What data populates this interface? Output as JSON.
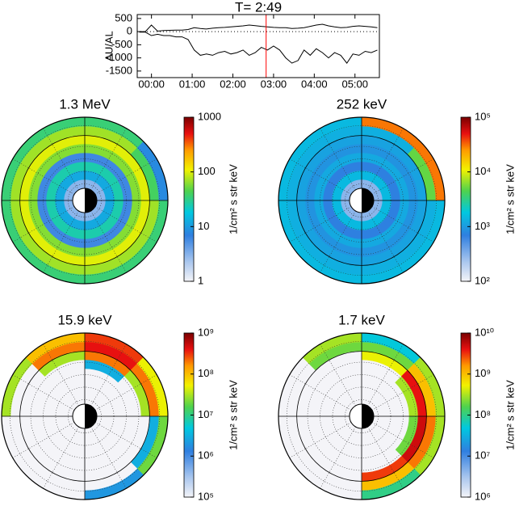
{
  "chart_data": [
    {
      "type": "line",
      "title": "T= 2:49",
      "ylabel": "AU/AL",
      "x": [
        -0.3,
        -0.15,
        0,
        0.15,
        0.3,
        0.45,
        0.6,
        0.75,
        0.9,
        1.05,
        1.2,
        1.35,
        1.5,
        1.65,
        1.8,
        1.95,
        2.1,
        2.25,
        2.4,
        2.55,
        2.7,
        2.85,
        3,
        3.15,
        3.3,
        3.45,
        3.6,
        3.75,
        3.9,
        4.05,
        4.2,
        4.35,
        4.5,
        4.65,
        4.8,
        4.95,
        5.1,
        5.25,
        5.4,
        5.55
      ],
      "series": [
        {
          "color": "#000000",
          "values": [
            0,
            0,
            250,
            20,
            40,
            50,
            60,
            60,
            80,
            150,
            120,
            100,
            130,
            150,
            160,
            180,
            200,
            220,
            250,
            230,
            200,
            180,
            160,
            150,
            150,
            120,
            130,
            150,
            200,
            250,
            280,
            220,
            180,
            150,
            160,
            200,
            220,
            200,
            180,
            150
          ]
        },
        {
          "color": "#000000",
          "values": [
            -20,
            -20,
            -150,
            -100,
            -150,
            -150,
            -200,
            -200,
            -300,
            -700,
            -900,
            -850,
            -900,
            -800,
            -750,
            -850,
            -800,
            -700,
            -900,
            -800,
            -600,
            -700,
            -550,
            -700,
            -1000,
            -1200,
            -1100,
            -700,
            -900,
            -650,
            -800,
            -1000,
            -800,
            -900,
            -1200,
            -850,
            -900,
            -750,
            -800,
            -700
          ]
        }
      ],
      "xlim": [
        -0.35,
        5.6
      ],
      "ylim": [
        -1750,
        650
      ],
      "xticks": [
        {
          "value": 0,
          "label": "00:00"
        },
        {
          "value": 1,
          "label": "01:00"
        },
        {
          "value": 2,
          "label": "02:00"
        },
        {
          "value": 3,
          "label": "03:00"
        },
        {
          "value": 4,
          "label": "04:00"
        },
        {
          "value": 5,
          "label": "05:00"
        }
      ],
      "yticks": [
        500,
        0,
        -500,
        -1000,
        -1500
      ],
      "marker": {
        "x": 2.817,
        "color": "#ff0000"
      }
    },
    {
      "type": "polar",
      "title": "1.3 MeV",
      "colorbar_label": "1/cm² s str keV",
      "log_scale": true,
      "clim": [
        1,
        1000
      ],
      "cticks": [
        1,
        10,
        100,
        1000
      ],
      "values": [
        [
          3,
          12,
          25,
          6,
          60,
          100,
          70,
          35
        ],
        [
          3,
          12,
          25,
          6,
          60,
          100,
          40,
          8
        ],
        [
          3,
          12,
          25,
          6,
          60,
          100,
          70,
          35
        ],
        [
          3,
          12,
          25,
          6,
          60,
          100,
          70,
          35
        ],
        [
          3,
          12,
          25,
          6,
          60,
          100,
          70,
          35
        ],
        [
          3,
          12,
          25,
          6,
          60,
          100,
          70,
          35
        ],
        [
          3,
          12,
          25,
          6,
          60,
          100,
          70,
          35
        ],
        [
          3,
          12,
          25,
          6,
          60,
          100,
          70,
          35
        ]
      ]
    },
    {
      "type": "polar",
      "title": "252 keV",
      "colorbar_label": "1/cm² s str keV",
      "log_scale": true,
      "clim": [
        100,
        100000
      ],
      "cticks": [
        {
          "value": 100,
          "label": "10²"
        },
        {
          "value": 1000,
          "label": "10³"
        },
        {
          "value": 10000,
          "label": "10⁴"
        },
        {
          "value": 100000,
          "label": "10⁵"
        }
      ],
      "values": [
        [
          300,
          1500,
          700,
          1200,
          900,
          1100,
          1300,
          30000
        ],
        [
          300,
          1500,
          700,
          1200,
          900,
          1100,
          5000,
          30000
        ],
        [
          300,
          1500,
          700,
          1200,
          900,
          1100,
          1300,
          1500
        ],
        [
          300,
          1500,
          700,
          1200,
          900,
          1100,
          1300,
          1500
        ],
        [
          300,
          1500,
          700,
          1200,
          900,
          1100,
          1300,
          1500
        ],
        [
          300,
          1500,
          700,
          1200,
          900,
          1100,
          1300,
          1500
        ],
        [
          300,
          1500,
          700,
          1200,
          900,
          1100,
          1300,
          1500
        ],
        [
          300,
          1500,
          700,
          1200,
          900,
          1100,
          1300,
          1500
        ]
      ]
    },
    {
      "type": "polar",
      "title": "15.9 keV",
      "colorbar_label": "1/cm² s str keV",
      "log_scale": true,
      "clim": [
        100000,
        1000000000
      ],
      "cticks": [
        {
          "value": 100000,
          "label": "10⁵"
        },
        {
          "value": 1000000,
          "label": "10⁶"
        },
        {
          "value": 10000000,
          "label": "10⁷"
        },
        {
          "value": 100000000,
          "label": "10⁸"
        },
        {
          "value": 1000000000,
          "label": "10⁹"
        }
      ],
      "values": [
        [
          100000,
          100000,
          100000,
          100000,
          3000000,
          200000000,
          400000000,
          300000000
        ],
        [
          100000,
          100000,
          100000,
          100000,
          100000,
          30000000,
          200000000,
          50000000
        ],
        [
          100000,
          100000,
          100000,
          100000,
          100000,
          100000,
          3000000,
          20000000
        ],
        [
          100000,
          100000,
          100000,
          100000,
          100000,
          100000,
          100000,
          2000000
        ],
        [
          100000,
          100000,
          100000,
          100000,
          100000,
          100000,
          100000,
          100000
        ],
        [
          100000,
          100000,
          100000,
          100000,
          100000,
          100000,
          100000,
          100000
        ],
        [
          100000,
          100000,
          100000,
          100000,
          100000,
          100000,
          100000,
          30000000
        ],
        [
          100000,
          100000,
          100000,
          100000,
          100000,
          30000000,
          200000000,
          100000000
        ]
      ]
    },
    {
      "type": "polar",
      "title": "1.7 keV",
      "colorbar_label": "1/cm² s str keV",
      "log_scale": true,
      "clim": [
        1000000,
        10000000000
      ],
      "cticks": [
        {
          "value": 1000000,
          "label": "10⁶"
        },
        {
          "value": 10000000,
          "label": "10⁷"
        },
        {
          "value": 100000000,
          "label": "10⁸"
        },
        {
          "value": 1000000000,
          "label": "10⁹"
        },
        {
          "value": 10000000000,
          "label": "10¹⁰"
        }
      ],
      "values": [
        [
          1000000,
          1000000,
          1000000,
          1000000,
          1000000,
          500000000,
          200000000,
          50000000
        ],
        [
          1000000,
          1000000,
          1000000,
          1000000,
          300000000,
          4000000000,
          1000000000,
          300000000
        ],
        [
          1000000,
          1000000,
          1000000,
          1000000,
          200000000,
          5000000000,
          2000000000,
          300000000
        ],
        [
          1000000,
          1000000,
          1000000,
          1000000,
          1000000,
          3000000000,
          1000000000,
          100000000
        ],
        [
          1000000,
          1000000,
          1000000,
          1000000,
          1000000,
          1000000,
          1000000,
          1000000
        ],
        [
          1000000,
          1000000,
          1000000,
          1000000,
          1000000,
          1000000,
          1000000,
          1000000
        ],
        [
          1000000,
          1000000,
          1000000,
          1000000,
          1000000,
          1000000,
          1000000,
          1000000
        ],
        [
          1000000,
          1000000,
          1000000,
          1000000,
          1000000,
          1000000,
          200000000,
          300000000
        ]
      ]
    }
  ]
}
